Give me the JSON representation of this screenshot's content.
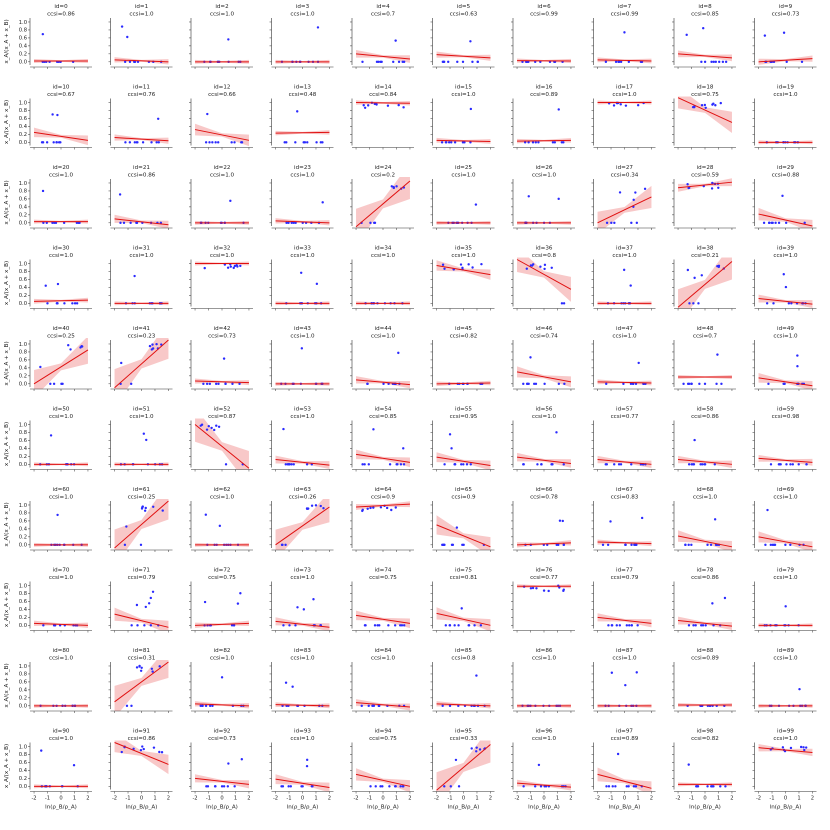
{
  "figure": {
    "ylabel": "x_A/(x_A + x_B)",
    "xlabel": "ln(ρ_B/ρ_A)",
    "xticks": [
      "-2",
      "-1",
      "0",
      "1",
      "2"
    ],
    "yticks": [
      "0.0",
      "0.2",
      "0.4",
      "0.6",
      "0.8",
      "1.0"
    ]
  },
  "colors": {
    "points": "#2a2aff",
    "fit_line": "#e01010",
    "band": "#f4a3a3"
  },
  "chart_data": {
    "type": "scatter",
    "layout": "small multiples grid 10x10 with linear fit and confidence band",
    "xlim": [
      -2.3,
      2.3
    ],
    "ylim": [
      -0.08,
      1.1
    ],
    "panels": [
      {
        "id": 0,
        "ccsi": "0.86",
        "line": [
          0.02,
          0.02
        ]
      },
      {
        "id": 1,
        "ccsi": "1.0",
        "line": [
          0.05,
          0.0
        ]
      },
      {
        "id": 2,
        "ccsi": "1.0",
        "line": [
          0.0,
          0.0
        ]
      },
      {
        "id": 3,
        "ccsi": "1.0",
        "line": [
          0.0,
          0.0
        ]
      },
      {
        "id": 4,
        "ccsi": "0.7",
        "line": [
          0.2,
          0.07
        ]
      },
      {
        "id": 5,
        "ccsi": "0.63",
        "line": [
          0.18,
          0.1
        ]
      },
      {
        "id": 6,
        "ccsi": "0.99",
        "line": [
          0.03,
          0.02
        ]
      },
      {
        "id": 7,
        "ccsi": "0.99",
        "line": [
          0.05,
          0.02
        ]
      },
      {
        "id": 8,
        "ccsi": "0.85",
        "line": [
          0.2,
          0.1
        ]
      },
      {
        "id": 9,
        "ccsi": "0.73",
        "line": [
          0.0,
          0.08
        ]
      },
      {
        "id": 10,
        "ccsi": "0.67",
        "line": [
          0.25,
          0.05
        ]
      },
      {
        "id": 11,
        "ccsi": "0.76",
        "line": [
          0.12,
          0.04
        ]
      },
      {
        "id": 12,
        "ccsi": "0.66",
        "line": [
          0.32,
          0.05
        ]
      },
      {
        "id": 13,
        "ccsi": "0.48",
        "line": [
          0.23,
          0.25
        ]
      },
      {
        "id": 14,
        "ccsi": "0.84",
        "line": [
          1.0,
          0.98
        ]
      },
      {
        "id": 15,
        "ccsi": "1.0",
        "line": [
          0.05,
          0.02
        ]
      },
      {
        "id": 16,
        "ccsi": "0.89",
        "line": [
          0.03,
          0.05
        ]
      },
      {
        "id": 17,
        "ccsi": "1.0",
        "line": [
          1.0,
          1.0
        ]
      },
      {
        "id": 18,
        "ccsi": "0.75",
        "line": [
          1.12,
          0.5
        ]
      },
      {
        "id": 19,
        "ccsi": "1.0",
        "line": [
          0.0,
          0.0
        ]
      },
      {
        "id": 20,
        "ccsi": "1.0",
        "line": [
          0.03,
          0.03
        ]
      },
      {
        "id": 21,
        "ccsi": "0.86",
        "line": [
          0.1,
          -0.05
        ]
      },
      {
        "id": 22,
        "ccsi": "1.0",
        "line": [
          0.0,
          0.0
        ]
      },
      {
        "id": 23,
        "ccsi": "1.0",
        "line": [
          0.05,
          0.0
        ]
      },
      {
        "id": 24,
        "ccsi": "0.2",
        "line": [
          -0.1,
          1.05
        ]
      },
      {
        "id": 25,
        "ccsi": "1.0",
        "line": [
          0.0,
          0.0
        ]
      },
      {
        "id": 26,
        "ccsi": "1.0",
        "line": [
          0.0,
          0.0
        ]
      },
      {
        "id": 27,
        "ccsi": "0.34",
        "line": [
          0.0,
          0.65
        ]
      },
      {
        "id": 28,
        "ccsi": "0.59",
        "line": [
          0.88,
          1.02
        ]
      },
      {
        "id": 29,
        "ccsi": "0.88",
        "line": [
          0.22,
          -0.08
        ]
      },
      {
        "id": 30,
        "ccsi": "1.0",
        "line": [
          0.05,
          0.08
        ]
      },
      {
        "id": 31,
        "ccsi": "1.0",
        "line": [
          0.0,
          0.0
        ]
      },
      {
        "id": 32,
        "ccsi": "1.0",
        "line": [
          1.0,
          1.0
        ]
      },
      {
        "id": 33,
        "ccsi": "1.0",
        "line": [
          0.0,
          0.0
        ]
      },
      {
        "id": 34,
        "ccsi": "1.0",
        "line": [
          0.0,
          0.0
        ]
      },
      {
        "id": 35,
        "ccsi": "1.0",
        "line": [
          0.95,
          0.72
        ]
      },
      {
        "id": 36,
        "ccsi": "0.8",
        "line": [
          1.1,
          0.35
        ]
      },
      {
        "id": 37,
        "ccsi": "1.0",
        "line": [
          0.0,
          0.0
        ]
      },
      {
        "id": 38,
        "ccsi": "0.21",
        "line": [
          -0.1,
          1.05
        ]
      },
      {
        "id": 39,
        "ccsi": "1.0",
        "line": [
          0.12,
          -0.02
        ]
      },
      {
        "id": 40,
        "ccsi": "0.25",
        "line": [
          0.0,
          0.85
        ]
      },
      {
        "id": 41,
        "ccsi": "0.23",
        "line": [
          -0.1,
          1.1
        ]
      },
      {
        "id": 42,
        "ccsi": "0.73",
        "line": [
          0.07,
          0.03
        ]
      },
      {
        "id": 43,
        "ccsi": "1.0",
        "line": [
          0.0,
          0.0
        ]
      },
      {
        "id": 44,
        "ccsi": "1.0",
        "line": [
          0.1,
          -0.02
        ]
      },
      {
        "id": 45,
        "ccsi": "0.82",
        "line": [
          0.0,
          0.02
        ]
      },
      {
        "id": 46,
        "ccsi": "0.74",
        "line": [
          0.3,
          0.05
        ]
      },
      {
        "id": 47,
        "ccsi": "1.0",
        "line": [
          0.05,
          0.02
        ]
      },
      {
        "id": 48,
        "ccsi": "0.7",
        "line": [
          0.17,
          0.17
        ]
      },
      {
        "id": 49,
        "ccsi": "1.0",
        "line": [
          0.15,
          -0.05
        ]
      },
      {
        "id": 50,
        "ccsi": "1.0",
        "line": [
          0.0,
          0.0
        ]
      },
      {
        "id": 51,
        "ccsi": "1.0",
        "line": [
          0.0,
          0.0
        ]
      },
      {
        "id": 52,
        "ccsi": "0.87",
        "line": [
          1.0,
          -0.1
        ]
      },
      {
        "id": 53,
        "ccsi": "1.0",
        "line": [
          0.12,
          -0.02
        ]
      },
      {
        "id": 54,
        "ccsi": "0.85",
        "line": [
          0.25,
          0.05
        ]
      },
      {
        "id": 55,
        "ccsi": "0.95",
        "line": [
          0.18,
          -0.03
        ]
      },
      {
        "id": 56,
        "ccsi": "1.0",
        "line": [
          0.18,
          0.02
        ]
      },
      {
        "id": 57,
        "ccsi": "0.77",
        "line": [
          0.12,
          0.0
        ]
      },
      {
        "id": 58,
        "ccsi": "0.86",
        "line": [
          0.12,
          0.0
        ]
      },
      {
        "id": 59,
        "ccsi": "0.98",
        "line": [
          0.15,
          0.05
        ]
      },
      {
        "id": 60,
        "ccsi": "1.0",
        "line": [
          0.0,
          0.0
        ]
      },
      {
        "id": 61,
        "ccsi": "0.25",
        "line": [
          -0.08,
          1.1
        ]
      },
      {
        "id": 62,
        "ccsi": "1.0",
        "line": [
          0.0,
          0.0
        ]
      },
      {
        "id": 63,
        "ccsi": "0.26",
        "line": [
          0.0,
          0.95
        ]
      },
      {
        "id": 64,
        "ccsi": "0.9",
        "line": [
          0.95,
          1.02
        ]
      },
      {
        "id": 65,
        "ccsi": "0.9",
        "line": [
          0.5,
          -0.05
        ]
      },
      {
        "id": 66,
        "ccsi": "0.78",
        "line": [
          0.0,
          0.05
        ]
      },
      {
        "id": 67,
        "ccsi": "0.83",
        "line": [
          0.07,
          0.03
        ]
      },
      {
        "id": 68,
        "ccsi": "1.0",
        "line": [
          0.22,
          -0.05
        ]
      },
      {
        "id": 69,
        "ccsi": "1.0",
        "line": [
          0.2,
          -0.05
        ]
      },
      {
        "id": 70,
        "ccsi": "1.0",
        "line": [
          0.05,
          0.0
        ]
      },
      {
        "id": 71,
        "ccsi": "0.79",
        "line": [
          0.28,
          -0.05
        ]
      },
      {
        "id": 72,
        "ccsi": "0.75",
        "line": [
          0.0,
          0.05
        ]
      },
      {
        "id": 73,
        "ccsi": "1.0",
        "line": [
          0.1,
          -0.05
        ]
      },
      {
        "id": 74,
        "ccsi": "0.75",
        "line": [
          0.25,
          0.05
        ]
      },
      {
        "id": 75,
        "ccsi": "0.81",
        "line": [
          0.3,
          0.0
        ]
      },
      {
        "id": 76,
        "ccsi": "0.77",
        "line": [
          0.98,
          0.98
        ]
      },
      {
        "id": 77,
        "ccsi": "0.79",
        "line": [
          0.2,
          0.05
        ]
      },
      {
        "id": 78,
        "ccsi": "0.86",
        "line": [
          0.12,
          -0.02
        ]
      },
      {
        "id": 79,
        "ccsi": "1.0",
        "line": [
          0.0,
          0.0
        ]
      },
      {
        "id": 80,
        "ccsi": "1.0",
        "line": [
          0.0,
          0.0
        ]
      },
      {
        "id": 81,
        "ccsi": "0.31",
        "line": [
          0.1,
          1.1
        ]
      },
      {
        "id": 82,
        "ccsi": "1.0",
        "line": [
          0.05,
          0.0
        ]
      },
      {
        "id": 83,
        "ccsi": "1.0",
        "line": [
          0.03,
          0.0
        ]
      },
      {
        "id": 84,
        "ccsi": "1.0",
        "line": [
          0.08,
          -0.03
        ]
      },
      {
        "id": 85,
        "ccsi": "0.8",
        "line": [
          0.05,
          0.0
        ]
      },
      {
        "id": 86,
        "ccsi": "1.0",
        "line": [
          0.0,
          0.0
        ]
      },
      {
        "id": 87,
        "ccsi": "1.0",
        "line": [
          0.0,
          0.0
        ]
      },
      {
        "id": 88,
        "ccsi": "0.89",
        "line": [
          0.02,
          0.02
        ]
      },
      {
        "id": 89,
        "ccsi": "1.0",
        "line": [
          0.0,
          0.0
        ]
      },
      {
        "id": 90,
        "ccsi": "1.0",
        "line": [
          0.0,
          0.0
        ]
      },
      {
        "id": 91,
        "ccsi": "0.86",
        "line": [
          1.1,
          0.55
        ]
      },
      {
        "id": 92,
        "ccsi": "0.73",
        "line": [
          0.2,
          0.05
        ]
      },
      {
        "id": 93,
        "ccsi": "1.0",
        "line": [
          0.18,
          -0.03
        ]
      },
      {
        "id": 94,
        "ccsi": "0.75",
        "line": [
          0.3,
          0.0
        ]
      },
      {
        "id": 95,
        "ccsi": "0.33",
        "line": [
          -0.1,
          1.05
        ]
      },
      {
        "id": 96,
        "ccsi": "1.0",
        "line": [
          0.08,
          -0.02
        ]
      },
      {
        "id": 97,
        "ccsi": "0.89",
        "line": [
          0.3,
          -0.05
        ]
      },
      {
        "id": 98,
        "ccsi": "0.82",
        "line": [
          0.05,
          0.05
        ]
      },
      {
        "id": 99,
        "ccsi": "1.0",
        "line": [
          0.97,
          0.85
        ]
      }
    ]
  }
}
